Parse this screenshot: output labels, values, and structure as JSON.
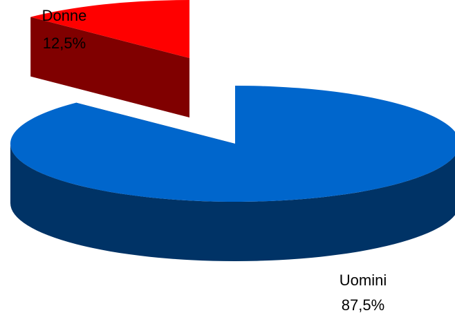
{
  "chart_data": {
    "type": "pie",
    "style": "3d-exploded",
    "title": "",
    "slices": [
      {
        "label": "Uomini",
        "value": 87.5,
        "value_label": "87,5%",
        "color": "#0066cc",
        "side_color": "#003366"
      },
      {
        "label": "Donne",
        "value": 12.5,
        "value_label": "12,5%",
        "color": "#ff0000",
        "side_color": "#800000"
      }
    ],
    "legend": "none",
    "data_labels": "category and percentage"
  }
}
